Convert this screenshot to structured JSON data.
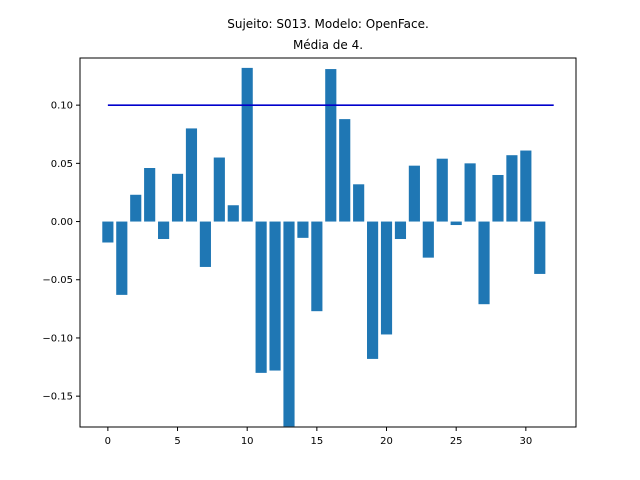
{
  "chart_data": {
    "type": "bar",
    "title_line1": "Sujeito: S013. Modelo: OpenFace.",
    "title_line2": "Média de 4.",
    "xlabel": "",
    "ylabel": "",
    "xlim": [
      -2.0,
      33.6
    ],
    "ylim": [
      -0.1765,
      0.1405
    ],
    "x_ticks": [
      0,
      5,
      10,
      15,
      20,
      25,
      30
    ],
    "y_ticks": [
      0.1,
      0.05,
      0.0,
      -0.05,
      -0.1,
      -0.15
    ],
    "y_tick_labels": [
      "0.10",
      "0.05",
      "0.00",
      "−0.05",
      "−0.10",
      "−0.15"
    ],
    "grid": false,
    "bar_color": "#1f77b4",
    "line_color": "#0000cc",
    "x": [
      0,
      1,
      2,
      3,
      4,
      5,
      6,
      7,
      8,
      9,
      10,
      11,
      12,
      13,
      14,
      15,
      16,
      17,
      18,
      19,
      20,
      21,
      22,
      23,
      24,
      25,
      26,
      27,
      28,
      29,
      30,
      31
    ],
    "values": [
      -0.018,
      -0.063,
      0.023,
      0.046,
      -0.015,
      0.041,
      0.08,
      -0.039,
      0.055,
      0.014,
      0.132,
      -0.13,
      -0.128,
      -0.176,
      -0.014,
      -0.077,
      0.131,
      0.088,
      0.032,
      -0.118,
      -0.097,
      -0.015,
      0.048,
      -0.031,
      0.054,
      -0.003,
      0.05,
      -0.071,
      0.04,
      0.057,
      0.061,
      -0.045
    ],
    "reference_line": {
      "y": 0.1,
      "x_start": 0,
      "x_end": 32
    }
  }
}
